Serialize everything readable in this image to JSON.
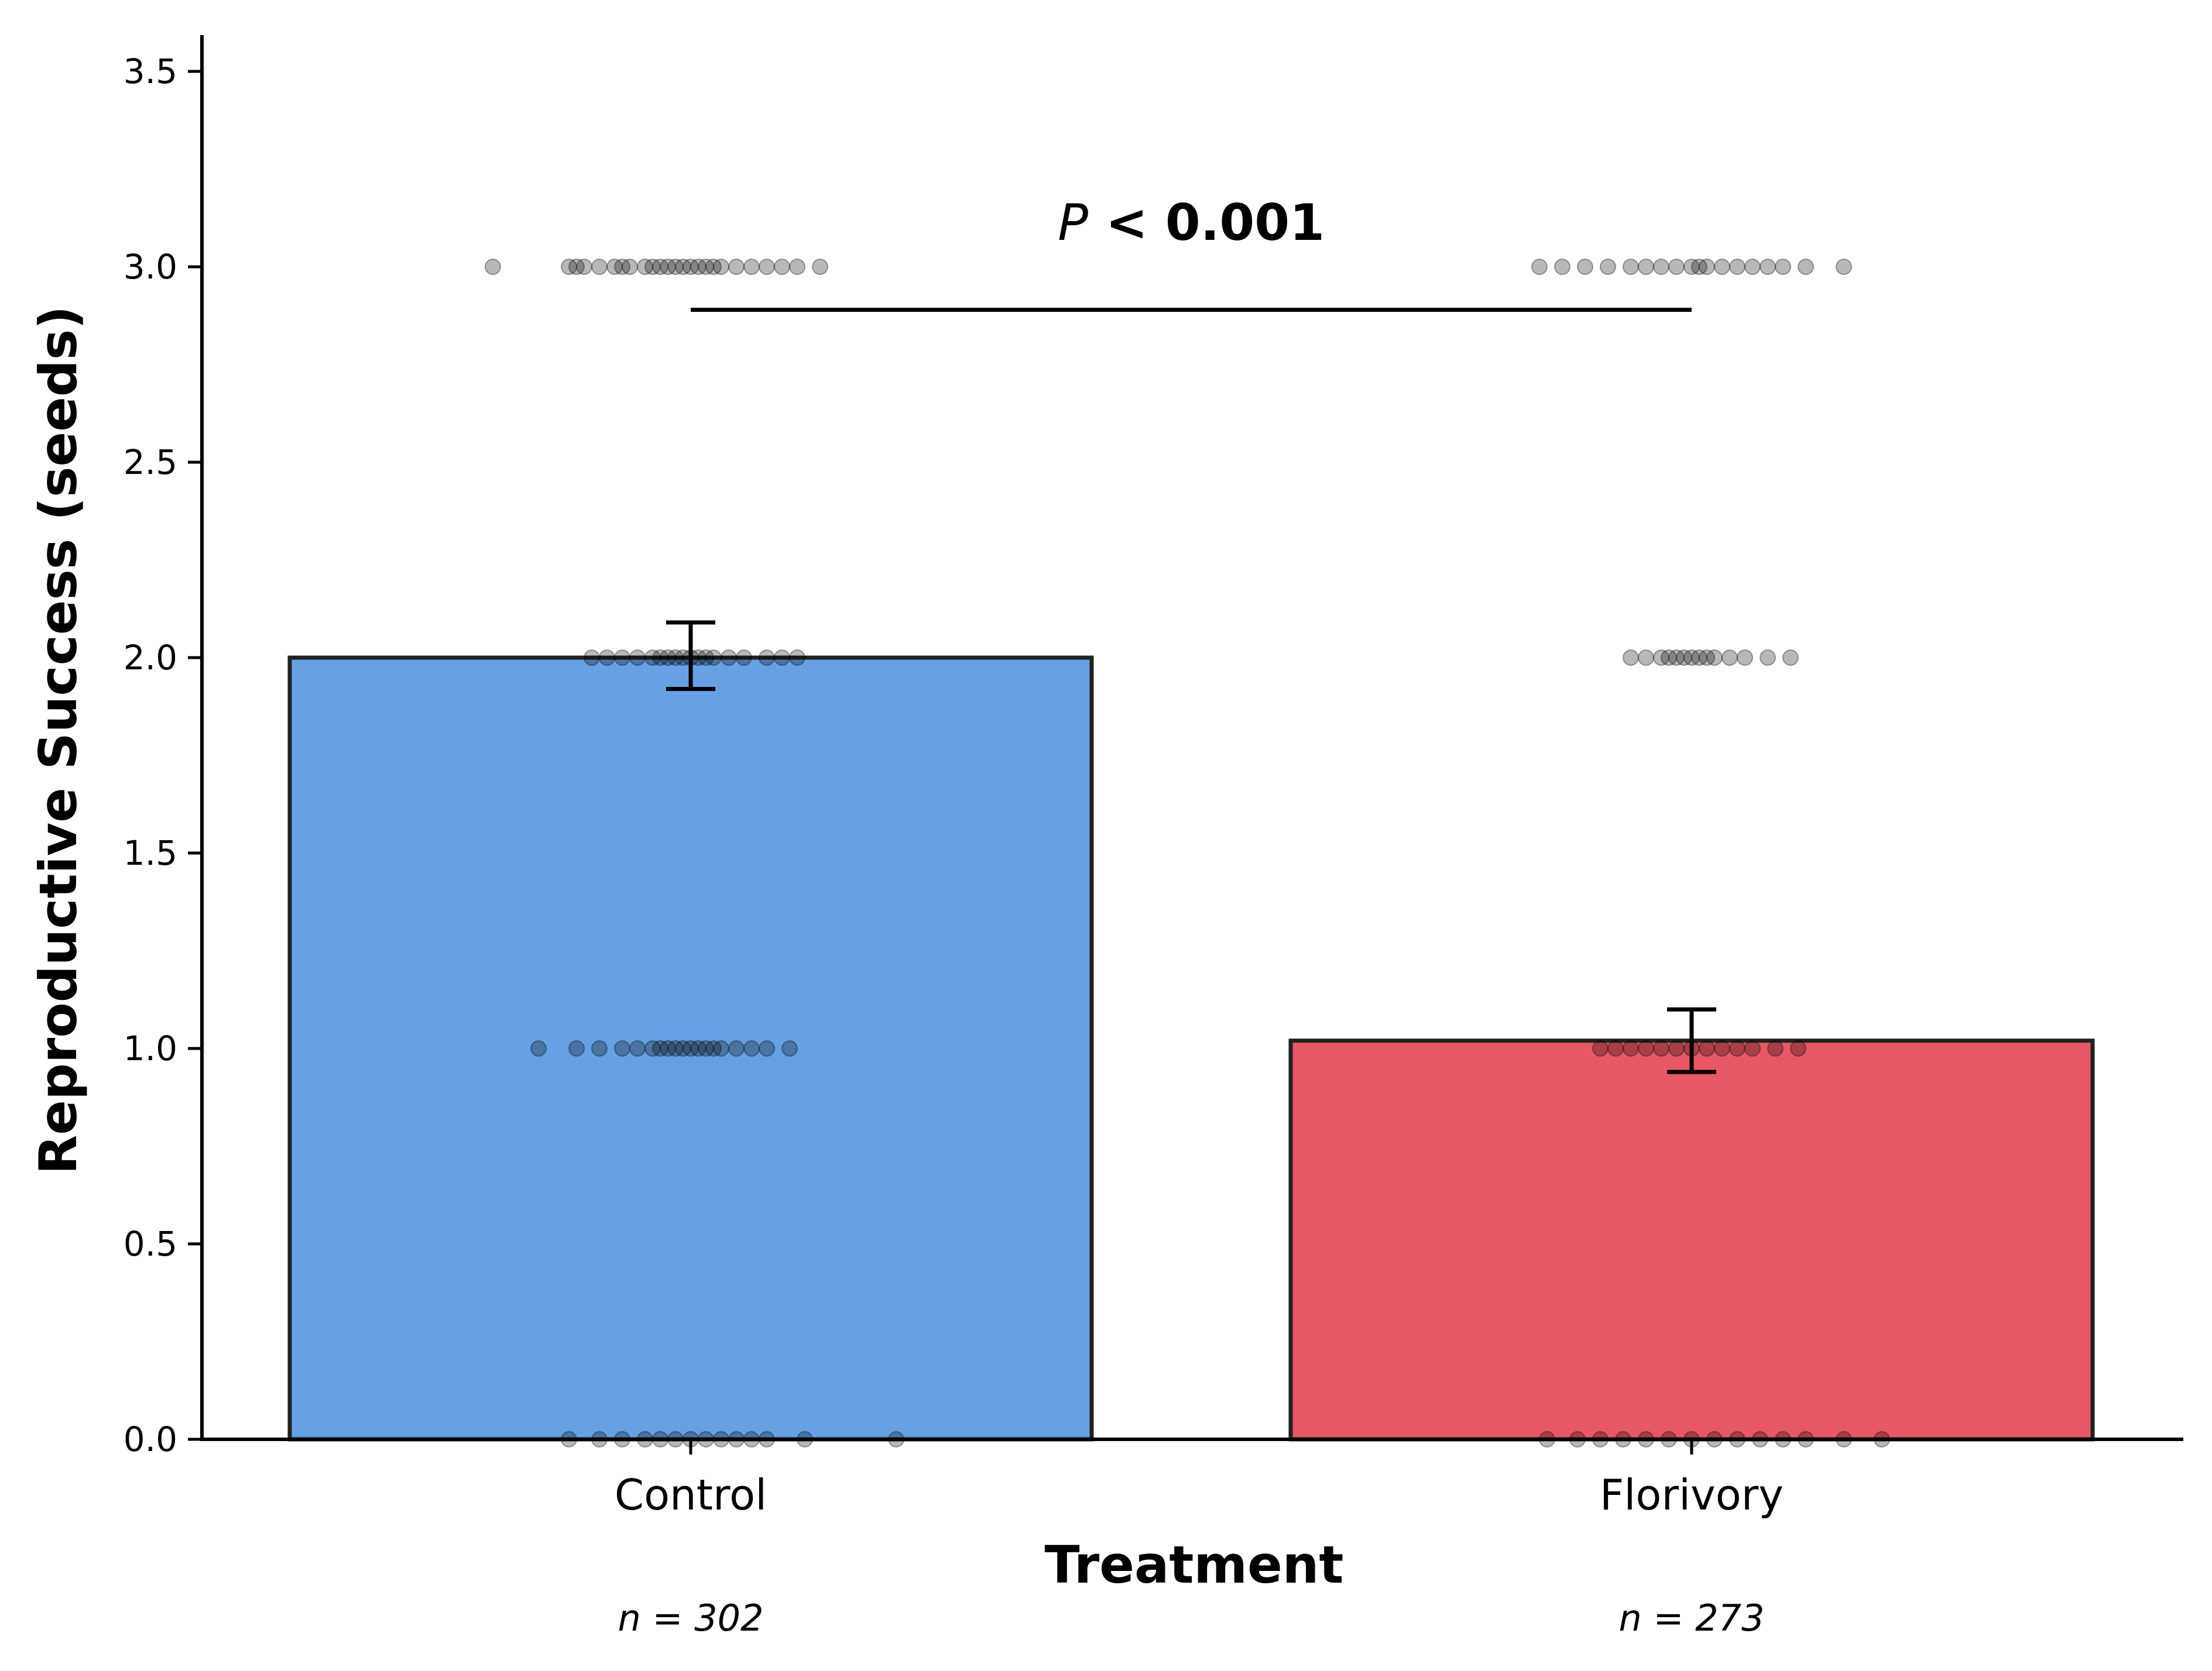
{
  "chart_data": {
    "type": "bar",
    "categories": [
      "Control",
      "Florivory"
    ],
    "values": [
      2.0,
      1.02
    ],
    "errors": [
      {
        "low": 1.92,
        "high": 2.09
      },
      {
        "low": 0.94,
        "high": 1.1
      }
    ],
    "colors": [
      "#66a1e4",
      "#e85864"
    ],
    "edge_color": "#222222",
    "xlabel": "Treatment",
    "ylabel": "Reproductive Success (seeds)",
    "ylim": [
      0,
      3.6
    ],
    "yticks": [
      "0.0",
      "0.5",
      "1.0",
      "1.5",
      "2.0",
      "2.5",
      "3.0",
      "3.5"
    ],
    "grid": false,
    "sample_sizes": [
      "n = 302",
      "n = 273"
    ],
    "significance": {
      "p_italic": "P",
      "text": "< 0.001"
    },
    "jitter_points": [
      {
        "category": "Control",
        "y": 3.0,
        "offsets": [
          -0.26,
          -0.16,
          -0.15,
          -0.14,
          -0.12,
          -0.1,
          -0.09,
          -0.08,
          -0.06,
          -0.05,
          -0.04,
          -0.03,
          -0.02,
          -0.01,
          0.0,
          0.01,
          0.02,
          0.03,
          0.04,
          0.06,
          0.08,
          0.1,
          0.12,
          0.14,
          0.17
        ]
      },
      {
        "category": "Control",
        "y": 2.0,
        "offsets": [
          -0.13,
          -0.11,
          -0.09,
          -0.07,
          -0.05,
          -0.04,
          -0.03,
          -0.02,
          -0.01,
          0.0,
          0.01,
          0.02,
          0.03,
          0.05,
          0.07,
          0.1,
          0.12,
          0.14
        ]
      },
      {
        "category": "Control",
        "y": 1.0,
        "offsets": [
          -0.2,
          -0.15,
          -0.12,
          -0.09,
          -0.07,
          -0.05,
          -0.04,
          -0.03,
          -0.02,
          -0.01,
          0.0,
          0.01,
          0.02,
          0.03,
          0.04,
          0.06,
          0.08,
          0.1,
          0.13
        ]
      },
      {
        "category": "Control",
        "y": 0.0,
        "offsets": [
          -0.16,
          -0.12,
          -0.09,
          -0.06,
          -0.04,
          -0.02,
          0.0,
          0.02,
          0.04,
          0.06,
          0.08,
          0.1,
          0.15,
          0.27
        ]
      },
      {
        "category": "Florivory",
        "y": 3.0,
        "offsets": [
          -0.2,
          -0.17,
          -0.14,
          -0.11,
          -0.08,
          -0.06,
          -0.04,
          -0.02,
          0.0,
          0.01,
          0.02,
          0.04,
          0.06,
          0.08,
          0.1,
          0.12,
          0.15,
          0.2
        ]
      },
      {
        "category": "Florivory",
        "y": 2.0,
        "offsets": [
          -0.08,
          -0.06,
          -0.04,
          -0.03,
          -0.02,
          -0.01,
          0.0,
          0.01,
          0.02,
          0.03,
          0.05,
          0.07,
          0.1,
          0.13
        ]
      },
      {
        "category": "Florivory",
        "y": 1.0,
        "offsets": [
          -0.12,
          -0.1,
          -0.08,
          -0.06,
          -0.04,
          -0.02,
          0.0,
          0.02,
          0.04,
          0.06,
          0.08,
          0.11,
          0.14
        ]
      },
      {
        "category": "Florivory",
        "y": 0.0,
        "offsets": [
          -0.19,
          -0.15,
          -0.12,
          -0.09,
          -0.06,
          -0.03,
          0.0,
          0.03,
          0.06,
          0.09,
          0.12,
          0.15,
          0.2,
          0.25
        ]
      }
    ]
  }
}
